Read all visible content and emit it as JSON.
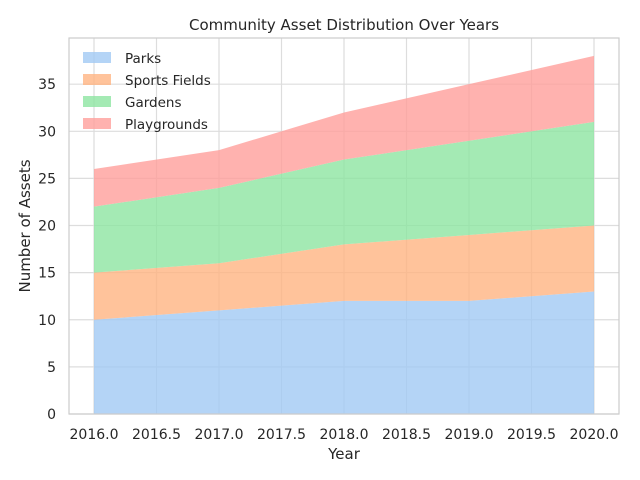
{
  "chart_data": {
    "type": "area",
    "stacked": true,
    "title": "Community Asset Distribution Over Years",
    "xlabel": "Year",
    "ylabel": "Number of Assets",
    "x": [
      2016,
      2017,
      2018,
      2019,
      2020
    ],
    "xlim": [
      2015.8,
      2020.2
    ],
    "ylim": [
      0,
      39.9
    ],
    "xticks": [
      2016.0,
      2016.5,
      2017.0,
      2017.5,
      2018.0,
      2018.5,
      2019.0,
      2019.5,
      2020.0
    ],
    "xtick_labels": [
      "2016.0",
      "2016.5",
      "2017.0",
      "2017.5",
      "2018.0",
      "2018.5",
      "2019.0",
      "2019.5",
      "2020.0"
    ],
    "yticks": [
      0,
      5,
      10,
      15,
      20,
      25,
      30,
      35
    ],
    "ytick_labels": [
      "0",
      "5",
      "10",
      "15",
      "20",
      "25",
      "30",
      "35"
    ],
    "grid": true,
    "legend_position": "top-left",
    "series": [
      {
        "name": "Parks",
        "values": [
          10,
          11,
          12,
          12,
          13
        ],
        "color": "#a1c9f4"
      },
      {
        "name": "Sports Fields",
        "values": [
          5,
          5,
          6,
          7,
          7
        ],
        "color": "#ffb482"
      },
      {
        "name": "Gardens",
        "values": [
          7,
          8,
          9,
          10,
          11
        ],
        "color": "#8de5a1"
      },
      {
        "name": "Playgrounds",
        "values": [
          4,
          4,
          5,
          6,
          7
        ],
        "color": "#ff9f9b"
      }
    ]
  }
}
